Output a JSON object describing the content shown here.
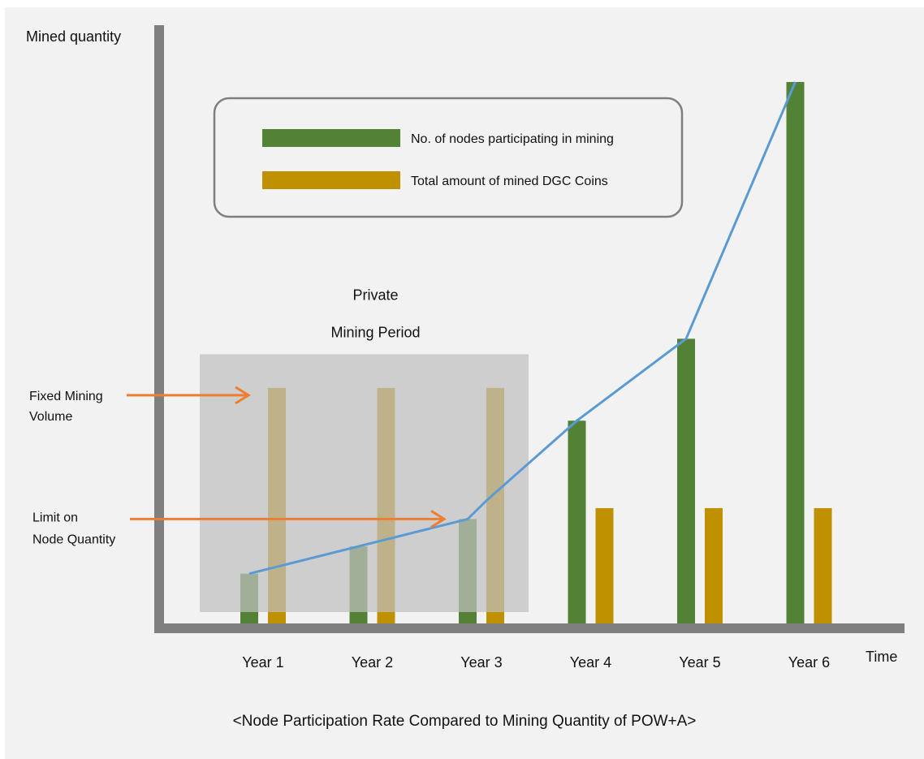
{
  "colors": {
    "nodes_bar": "#538135",
    "coins_bar": "#bf9000",
    "growth_line": "#5b9bd5",
    "arrow": "#ed7d31",
    "axis": "#7f7f7f",
    "private_region": "#bfbfbf",
    "legend_border": "#7f7f7f",
    "background": "#f2f2f2"
  },
  "chart_data": {
    "type": "bar",
    "title": "<Node Participation Rate Compared to Mining Quantity of POW+A>",
    "xlabel": "Time",
    "ylabel": "Mined quantity",
    "categories": [
      "Year 1",
      "Year 2",
      "Year 3",
      "Year 4",
      "Year 5",
      "Year 6"
    ],
    "ylim": [
      0,
      100
    ],
    "grid": false,
    "series": [
      {
        "name": "No. of nodes participating in mining",
        "values": [
          10,
          15,
          20,
          38,
          53,
          100
        ]
      },
      {
        "name": "Total amount of mined DGC Coins",
        "values": [
          44,
          44,
          44,
          22,
          22,
          22
        ]
      }
    ],
    "line": {
      "values": [
        10,
        15,
        20,
        38,
        53,
        100
      ]
    },
    "legend": {
      "placement": "top-center"
    },
    "region": {
      "label_line1": "Private",
      "label_line2": "Mining Period",
      "from": "Year 1",
      "to": "Year 3"
    },
    "annotations": [
      {
        "text_line1": "Fixed Mining",
        "text_line2": "Volume",
        "target": "Total amount of mined DGC Coins, Year 1",
        "value": 44
      },
      {
        "text_line1": "Limit on",
        "text_line2": "Node Quantity",
        "target": "No. of nodes participating in mining, Year 3",
        "value": 20
      }
    ]
  }
}
